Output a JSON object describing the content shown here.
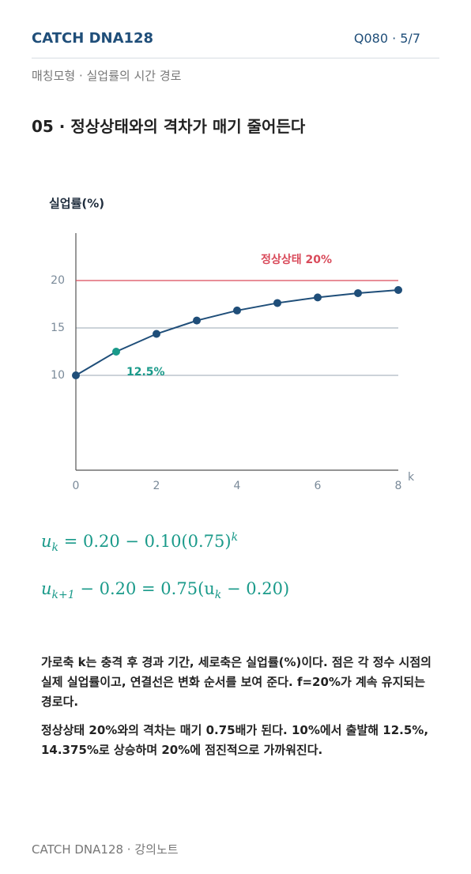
{
  "header": {
    "brand": "CATCH DNA128",
    "page": "Q080 · 5/7",
    "subtitle": "매칭모형 · 실업률의 시간 경로"
  },
  "section_title": "05 · 정상상태와의 격차가 매기 줄어든다",
  "chart_data": {
    "type": "line",
    "y_label": "실업률(%)",
    "x_label": "k",
    "x": [
      0,
      1,
      2,
      3,
      4,
      5,
      6,
      7,
      8
    ],
    "series": [
      {
        "color": "#1f4e79",
        "values": [
          10,
          12.5,
          14.375,
          15.78,
          16.84,
          17.63,
          18.22,
          18.67,
          19.0
        ]
      }
    ],
    "xlim": [
      0,
      8
    ],
    "xticks": [
      0,
      2,
      4,
      6,
      8
    ],
    "ylim": [
      0,
      25
    ],
    "yticks": [
      10,
      15,
      20
    ],
    "grid": true,
    "reference_line": {
      "value": 20,
      "label": "정상상태 20%",
      "color": "#d94a5a"
    },
    "highlight": {
      "index": 1,
      "label": "12.5%",
      "color": "#1a9a8a"
    }
  },
  "formulas": [
    [
      {
        "t": "u"
      },
      {
        "sub": "k"
      },
      {
        "t": " = 0.20 − 0.10(0.75)"
      },
      {
        "sup": "k"
      }
    ],
    [
      {
        "t": "u"
      },
      {
        "sub": "k+1"
      },
      {
        "t": " − 0.20 = 0.75(u"
      },
      {
        "sub": "k"
      },
      {
        "t": " − 0.20)"
      }
    ]
  ],
  "paragraphs": [
    "가로축 k는 충격 후 경과 기간, 세로축은 실업률(%)이다. 점은 각 정수 시점의 실제 실업률이고, 연결선은 변화 순서를 보여 준다. f=20%가 계속 유지되는 경로다.",
    "정상상태 20%와의 격차는 매기 0.75배가 된다. 10%에서 출발해 12.5%, 14.375%로 상승하며 20%에 점진적으로 가까워진다."
  ],
  "footer": "CATCH DNA128 · 강의노트"
}
